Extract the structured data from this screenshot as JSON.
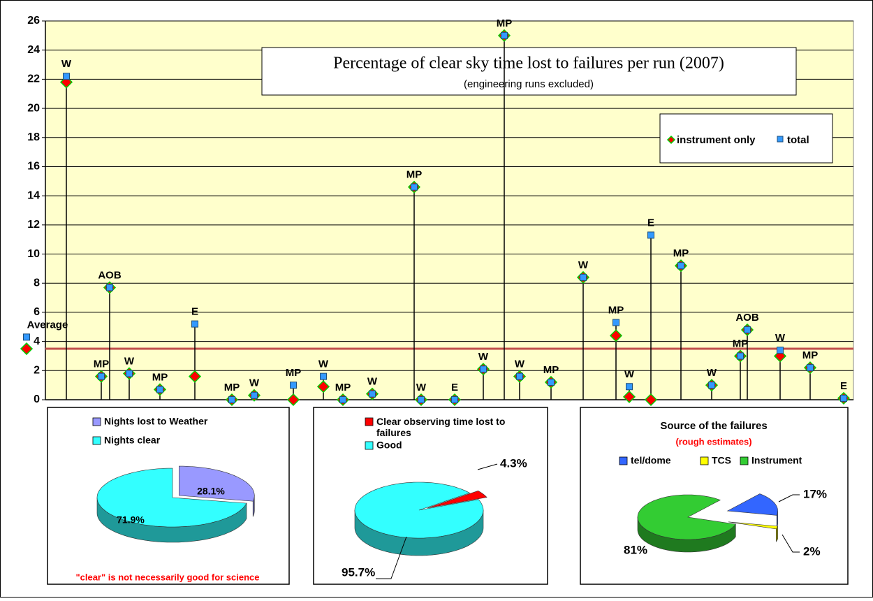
{
  "chart_data": [
    {
      "type": "scatter",
      "title": "Percentage of clear sky time lost to failures per run (2007)",
      "subtitle": "(engineering runs excluded)",
      "categories": [
        "Average",
        "W",
        "MP",
        "AOB",
        "W",
        "MP",
        "E",
        "MP",
        "W",
        "MP",
        "W",
        "MP",
        "W",
        "MP",
        "W",
        "E",
        "W",
        "MP",
        "W",
        "MP",
        "W",
        "MP",
        "W",
        "E",
        "MP",
        "W",
        "MP",
        "AOB",
        "W",
        "MP",
        "E"
      ],
      "series": [
        {
          "name": "instrument only",
          "color": "#ff0000",
          "values": [
            3.5,
            21.8,
            1.6,
            7.7,
            1.8,
            0.7,
            1.6,
            0,
            0.3,
            0,
            0.9,
            0,
            0.4,
            14.6,
            0,
            0,
            2.1,
            25.0,
            1.6,
            1.2,
            8.4,
            4.4,
            0.2,
            0,
            9.2,
            1.0,
            3.0,
            4.8,
            3.0,
            2.2,
            0.1
          ]
        },
        {
          "name": "total",
          "color": "#3399ff",
          "values": [
            4.3,
            22.2,
            1.6,
            7.7,
            1.8,
            0.7,
            5.2,
            0,
            0.3,
            1.0,
            1.6,
            0,
            0.4,
            14.6,
            0,
            0,
            2.1,
            25.0,
            1.6,
            1.2,
            8.4,
            5.3,
            0.9,
            11.3,
            9.2,
            1.0,
            3.0,
            4.8,
            3.4,
            2.2,
            0.1
          ]
        }
      ],
      "average": 3.5,
      "average_color": "#c0504d",
      "ylim": [
        0,
        26
      ],
      "yticks": [
        0,
        2,
        4,
        6,
        8,
        10,
        12,
        14,
        16,
        18,
        20,
        22,
        24,
        26
      ],
      "grid": true,
      "legend": "top-right",
      "background": "#ffffcc"
    },
    {
      "type": "pie",
      "categories": [
        "Nights lost to Weather",
        "Nights clear"
      ],
      "values": [
        28.1,
        71.9
      ],
      "value_labels": [
        "28.1%",
        "71.9%"
      ],
      "colors": [
        "#9999ff",
        "#33ffff"
      ],
      "note": "\"clear\" is not necessarily good for science"
    },
    {
      "type": "pie",
      "categories": [
        "Clear observing time lost to failures",
        "Good"
      ],
      "values": [
        4.3,
        95.7
      ],
      "value_labels": [
        "4.3%",
        "95.7%"
      ],
      "colors": [
        "#ff0000",
        "#33ffff"
      ]
    },
    {
      "type": "pie",
      "title": "Source of the failures",
      "subtitle": "(rough estimates)",
      "categories": [
        "tel/dome",
        "TCS",
        "Instrument"
      ],
      "values": [
        17,
        2,
        81
      ],
      "value_labels": [
        "17%",
        "2%",
        "81%"
      ],
      "colors": [
        "#3366ff",
        "#ffff00",
        "#33cc33"
      ]
    }
  ]
}
